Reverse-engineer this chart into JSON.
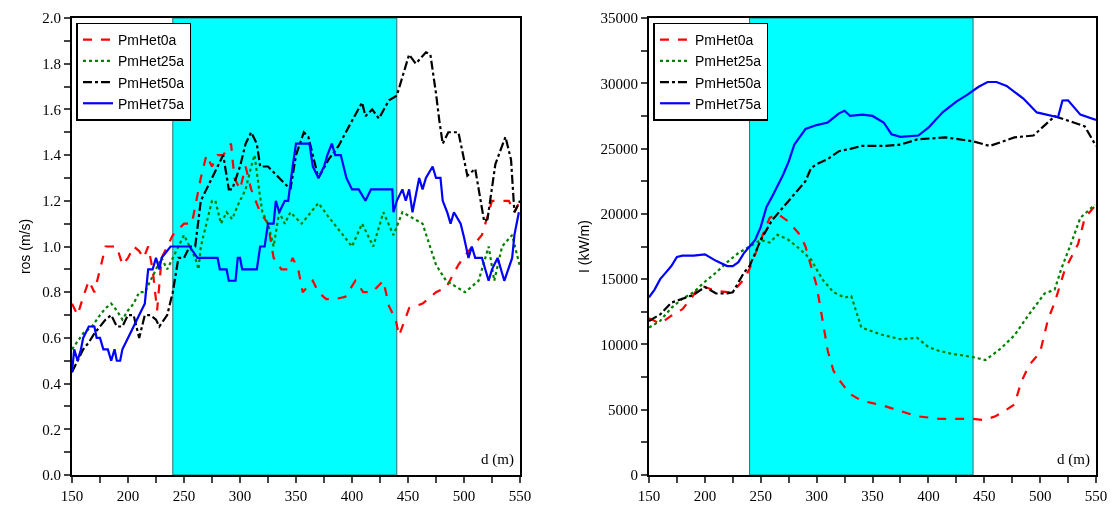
{
  "chart_data": [
    {
      "type": "line",
      "xlabel": "d (m)",
      "ylabel": "ros (m/s)",
      "xlim": [
        150,
        550
      ],
      "ylim": [
        0,
        2
      ],
      "xticks": [
        150,
        {
          "value": 175,
          "label": null
        },
        200,
        {
          "value": 225,
          "label": null
        },
        250,
        {
          "value": 275,
          "label": null
        },
        300,
        {
          "value": 325,
          "label": null
        },
        350,
        {
          "value": 375,
          "label": null
        },
        400,
        {
          "value": 425,
          "label": null
        },
        450,
        {
          "value": 475,
          "label": null
        },
        500,
        {
          "value": 525,
          "label": null
        },
        550
      ],
      "yticks": [
        {
          "value": 0,
          "label": "0.0"
        },
        {
          "value": 0.1,
          "label": null
        },
        0.2,
        {
          "value": 0.3,
          "label": null
        },
        0.4,
        {
          "value": 0.5,
          "label": null
        },
        0.6,
        {
          "value": 0.7,
          "label": null
        },
        0.8,
        {
          "value": 0.9,
          "label": null
        },
        {
          "value": 1,
          "label": "1.0"
        },
        {
          "value": 1.1,
          "label": null
        },
        1.2,
        {
          "value": 1.3,
          "label": null
        },
        1.4,
        {
          "value": 1.5,
          "label": null
        },
        1.6,
        {
          "value": 1.7,
          "label": null
        },
        1.8,
        {
          "value": 1.9,
          "label": null
        },
        {
          "value": 2,
          "label": "2.0"
        }
      ],
      "grid": false,
      "legend": "top left",
      "bands": [
        {
          "axis": "x",
          "from": 240,
          "to": 440,
          "color": "#00ffff"
        }
      ],
      "series": [
        {
          "name": "PmHet0a",
          "color": "#ff0000",
          "line_style": "dashed",
          "x": [
            150,
            155,
            160,
            165,
            170,
            175,
            180,
            190,
            195,
            200,
            205,
            210,
            214,
            218,
            222,
            226,
            230,
            235,
            240,
            250,
            257,
            265,
            270,
            275,
            280,
            285,
            292,
            295,
            300,
            305,
            310,
            318,
            325,
            330,
            337,
            343,
            347,
            352,
            356,
            365,
            370,
            377,
            385,
            394,
            403,
            410,
            418,
            428,
            433,
            439,
            442,
            451,
            463,
            475,
            484,
            495,
            504,
            516,
            525,
            540,
            545,
            550
          ],
          "values": [
            0.75,
            0.7,
            0.78,
            0.85,
            0.8,
            0.9,
            1.0,
            1.0,
            0.92,
            0.95,
            1.0,
            0.98,
            0.95,
            1.0,
            0.9,
            0.72,
            0.95,
            1.0,
            1.05,
            1.1,
            1.1,
            1.3,
            1.4,
            1.35,
            1.4,
            1.4,
            1.45,
            1.3,
            1.25,
            1.35,
            1.25,
            1.15,
            1.1,
            0.95,
            0.9,
            0.9,
            0.95,
            0.9,
            0.8,
            0.85,
            0.8,
            0.77,
            0.77,
            0.78,
            0.85,
            0.8,
            0.8,
            0.85,
            0.74,
            0.68,
            0.61,
            0.73,
            0.75,
            0.8,
            0.82,
            0.92,
            0.98,
            1.05,
            1.2,
            1.2,
            1.15,
            1.2
          ]
        },
        {
          "name": "PmHet25a",
          "color": "#008000",
          "line_style": "dotted",
          "x": [
            150,
            160,
            168,
            175,
            180,
            185,
            190,
            195,
            200,
            205,
            210,
            215,
            220,
            225,
            230,
            235,
            240,
            245,
            250,
            255,
            260,
            263,
            265,
            270,
            275,
            278,
            283,
            288,
            293,
            298,
            305,
            310,
            313,
            317,
            320,
            325,
            330,
            335,
            340,
            345,
            355,
            370,
            379,
            400,
            409,
            419,
            428,
            437,
            445,
            463,
            475,
            484,
            501,
            513,
            522,
            527,
            534,
            543,
            550
          ],
          "values": [
            0.55,
            0.62,
            0.65,
            0.7,
            0.73,
            0.75,
            0.72,
            0.68,
            0.72,
            0.75,
            0.8,
            0.8,
            0.85,
            0.9,
            0.95,
            0.9,
            0.95,
            1.0,
            1.05,
            1.0,
            0.95,
            0.9,
            1.0,
            1.1,
            1.2,
            1.2,
            1.1,
            1.15,
            1.12,
            1.18,
            1.25,
            1.35,
            1.4,
            1.25,
            1.15,
            1.1,
            1.0,
            1.15,
            1.1,
            1.15,
            1.1,
            1.19,
            1.13,
            1.0,
            1.1,
            1.0,
            1.15,
            1.05,
            1.15,
            1.1,
            0.92,
            0.85,
            0.8,
            0.85,
            1.0,
            0.85,
            1.0,
            1.05,
            0.91
          ]
        },
        {
          "name": "PmHet50a",
          "color": "#000000",
          "line_style": "dashdot",
          "x": [
            150,
            155,
            160,
            165,
            170,
            175,
            180,
            185,
            190,
            195,
            200,
            205,
            210,
            215,
            220,
            225,
            228,
            235,
            240,
            245,
            250,
            255,
            260,
            265,
            270,
            275,
            280,
            285,
            290,
            293,
            300,
            305,
            310,
            315,
            318,
            325,
            335,
            345,
            350,
            357,
            361,
            370,
            379,
            388,
            400,
            409,
            412,
            418,
            424,
            433,
            440,
            451,
            457,
            466,
            470,
            475,
            478,
            481,
            486,
            495,
            503,
            510,
            518,
            521,
            528,
            537,
            542,
            545,
            550
          ],
          "values": [
            0.45,
            0.5,
            0.55,
            0.58,
            0.62,
            0.65,
            0.68,
            0.7,
            0.65,
            0.65,
            0.7,
            0.7,
            0.6,
            0.7,
            0.7,
            0.68,
            0.65,
            0.7,
            0.8,
            0.95,
            0.95,
            1.0,
            1.0,
            1.2,
            1.25,
            1.3,
            1.35,
            1.4,
            1.25,
            1.25,
            1.35,
            1.45,
            1.5,
            1.45,
            1.35,
            1.35,
            1.3,
            1.25,
            1.4,
            1.5,
            1.48,
            1.3,
            1.38,
            1.44,
            1.55,
            1.63,
            1.57,
            1.6,
            1.56,
            1.64,
            1.66,
            1.84,
            1.8,
            1.85,
            1.84,
            1.67,
            1.55,
            1.45,
            1.5,
            1.5,
            1.31,
            1.34,
            1.11,
            1.12,
            1.36,
            1.48,
            1.38,
            1.15,
            1.2
          ]
        },
        {
          "name": "PmHet75a",
          "color": "#0000ff",
          "line_style": "solid",
          "x": [
            150,
            152,
            155,
            158,
            160,
            165,
            170,
            172,
            175,
            178,
            182,
            185,
            188,
            190,
            193,
            195,
            200,
            205,
            210,
            215,
            218,
            222,
            225,
            228,
            230,
            238,
            255,
            262,
            280,
            282,
            288,
            290,
            296,
            298,
            300,
            302,
            315,
            318,
            322,
            325,
            330,
            332,
            335,
            340,
            343,
            347,
            350,
            357,
            362,
            365,
            370,
            375,
            378,
            382,
            385,
            390,
            395,
            400,
            406,
            412,
            417,
            436,
            437,
            440,
            445,
            448,
            451,
            454,
            460,
            463,
            466,
            472,
            475,
            479,
            481,
            485,
            488,
            491,
            497,
            500,
            504,
            507,
            510,
            516,
            522,
            525,
            530,
            536,
            543,
            545,
            549
          ],
          "values": [
            0.45,
            0.55,
            0.5,
            0.55,
            0.6,
            0.65,
            0.65,
            0.6,
            0.6,
            0.55,
            0.55,
            0.5,
            0.55,
            0.5,
            0.5,
            0.55,
            0.6,
            0.65,
            0.7,
            0.75,
            0.9,
            0.9,
            0.95,
            0.9,
            0.95,
            1.0,
            1.0,
            0.95,
            0.95,
            0.9,
            0.9,
            0.85,
            0.85,
            0.95,
            0.95,
            0.9,
            0.9,
            1.0,
            1.0,
            1.1,
            1.1,
            1.2,
            1.15,
            1.2,
            1.2,
            1.35,
            1.45,
            1.45,
            1.45,
            1.35,
            1.3,
            1.35,
            1.4,
            1.45,
            1.4,
            1.4,
            1.3,
            1.25,
            1.25,
            1.2,
            1.25,
            1.25,
            1.15,
            1.2,
            1.25,
            1.2,
            1.25,
            1.15,
            1.3,
            1.25,
            1.3,
            1.35,
            1.3,
            1.3,
            1.2,
            1.15,
            1.1,
            1.15,
            1.1,
            1.04,
            0.95,
            1.0,
            0.95,
            0.95,
            0.85,
            0.9,
            0.95,
            0.85,
            0.95,
            1.05,
            1.15
          ]
        }
      ]
    },
    {
      "type": "line",
      "xlabel": "d (m)",
      "ylabel": "I (kW/m)",
      "xlim": [
        150,
        550
      ],
      "ylim": [
        0,
        35000
      ],
      "xticks": [
        150,
        {
          "value": 175,
          "label": null
        },
        200,
        {
          "value": 225,
          "label": null
        },
        250,
        {
          "value": 275,
          "label": null
        },
        300,
        {
          "value": 325,
          "label": null
        },
        350,
        {
          "value": 375,
          "label": null
        },
        400,
        {
          "value": 425,
          "label": null
        },
        450,
        {
          "value": 475,
          "label": null
        },
        500,
        {
          "value": 525,
          "label": null
        },
        550
      ],
      "yticks": [
        0,
        {
          "value": 2500,
          "label": null
        },
        5000,
        {
          "value": 7500,
          "label": null
        },
        10000,
        {
          "value": 12500,
          "label": null
        },
        15000,
        {
          "value": 17500,
          "label": null
        },
        20000,
        {
          "value": 22500,
          "label": null
        },
        25000,
        {
          "value": 27500,
          "label": null
        },
        30000,
        {
          "value": 32500,
          "label": null
        },
        35000
      ],
      "grid": false,
      "legend": "top left",
      "bands": [
        {
          "axis": "x",
          "from": 240,
          "to": 440,
          "color": "#00ffff"
        }
      ],
      "series": [
        {
          "name": "PmHet0a",
          "color": "#ff0000",
          "line_style": "dashed",
          "x": [
            150,
            160,
            170,
            180,
            190,
            195,
            200,
            210,
            220,
            225,
            235,
            240,
            250,
            258,
            265,
            275,
            285,
            290,
            295,
            300,
            305,
            310,
            315,
            320,
            330,
            340,
            350,
            360,
            375,
            390,
            410,
            440,
            450,
            460,
            470,
            477,
            483,
            490,
            500,
            507,
            513,
            522,
            534,
            540,
            550
          ],
          "values": [
            12000,
            11600,
            12200,
            12700,
            13800,
            14500,
            14400,
            14100,
            14000,
            14000,
            15000,
            15800,
            18000,
            19700,
            20000,
            19400,
            18400,
            17500,
            16000,
            14500,
            12000,
            9500,
            8000,
            7300,
            6200,
            5700,
            5500,
            5300,
            4900,
            4500,
            4300,
            4300,
            4200,
            4500,
            5000,
            5400,
            7100,
            8400,
            9400,
            11900,
            13200,
            15700,
            17700,
            19700,
            20700
          ]
        },
        {
          "name": "PmHet25a",
          "color": "#008000",
          "line_style": "dotted",
          "x": [
            150,
            160,
            170,
            180,
            190,
            200,
            210,
            220,
            230,
            240,
            250,
            258,
            265,
            275,
            285,
            295,
            305,
            315,
            325,
            331,
            340,
            357,
            375,
            390,
            400,
            410,
            420,
            440,
            451,
            465,
            477,
            490,
            504,
            513,
            519,
            528,
            536,
            549
          ],
          "values": [
            11300,
            11800,
            12800,
            13500,
            14000,
            14800,
            15500,
            16300,
            17000,
            17500,
            18000,
            17800,
            18400,
            18000,
            17300,
            16500,
            15000,
            14000,
            13600,
            13700,
            11300,
            10770,
            10400,
            10500,
            9800,
            9500,
            9300,
            9030,
            8800,
            9700,
            10700,
            12300,
            13900,
            14200,
            15800,
            17800,
            19700,
            20700
          ]
        },
        {
          "name": "PmHet50a",
          "color": "#000000",
          "line_style": "dashdot",
          "x": [
            150,
            160,
            170,
            180,
            190,
            200,
            210,
            220,
            225,
            235,
            240,
            250,
            260,
            270,
            280,
            290,
            295,
            300,
            310,
            320,
            331,
            340,
            360,
            375,
            390,
            415,
            440,
            455,
            477,
            494,
            513,
            530,
            540,
            550
          ],
          "values": [
            11800,
            12300,
            13200,
            13500,
            13800,
            14400,
            13900,
            13900,
            14000,
            15500,
            16000,
            18000,
            19500,
            20500,
            21500,
            22500,
            23500,
            23800,
            24200,
            24800,
            25000,
            25200,
            25200,
            25300,
            25700,
            25860,
            25550,
            25200,
            25860,
            26000,
            27470,
            27000,
            26700,
            25200
          ]
        },
        {
          "name": "PmHet75a",
          "color": "#0000ff",
          "line_style": "solid",
          "x": [
            150,
            155,
            160,
            165,
            170,
            175,
            180,
            190,
            200,
            210,
            220,
            225,
            230,
            235,
            240,
            245,
            250,
            255,
            260,
            270,
            275,
            280,
            290,
            300,
            310,
            320,
            325,
            330,
            341,
            350,
            360,
            367,
            375,
            391,
            400,
            413,
            425,
            435,
            445,
            453,
            461,
            470,
            485,
            497,
            516,
            520,
            525,
            536,
            550
          ],
          "values": [
            13600,
            14200,
            15000,
            15500,
            16000,
            16700,
            16800,
            16800,
            16900,
            16400,
            16000,
            16000,
            16300,
            17000,
            17500,
            18000,
            19000,
            20500,
            21300,
            23000,
            24000,
            25300,
            26500,
            26800,
            27000,
            27700,
            27900,
            27500,
            27600,
            27500,
            27000,
            26100,
            25900,
            26000,
            26600,
            27800,
            28600,
            29130,
            29730,
            30100,
            30100,
            29800,
            28830,
            27770,
            27400,
            28680,
            28700,
            27600,
            27200
          ]
        }
      ]
    }
  ]
}
